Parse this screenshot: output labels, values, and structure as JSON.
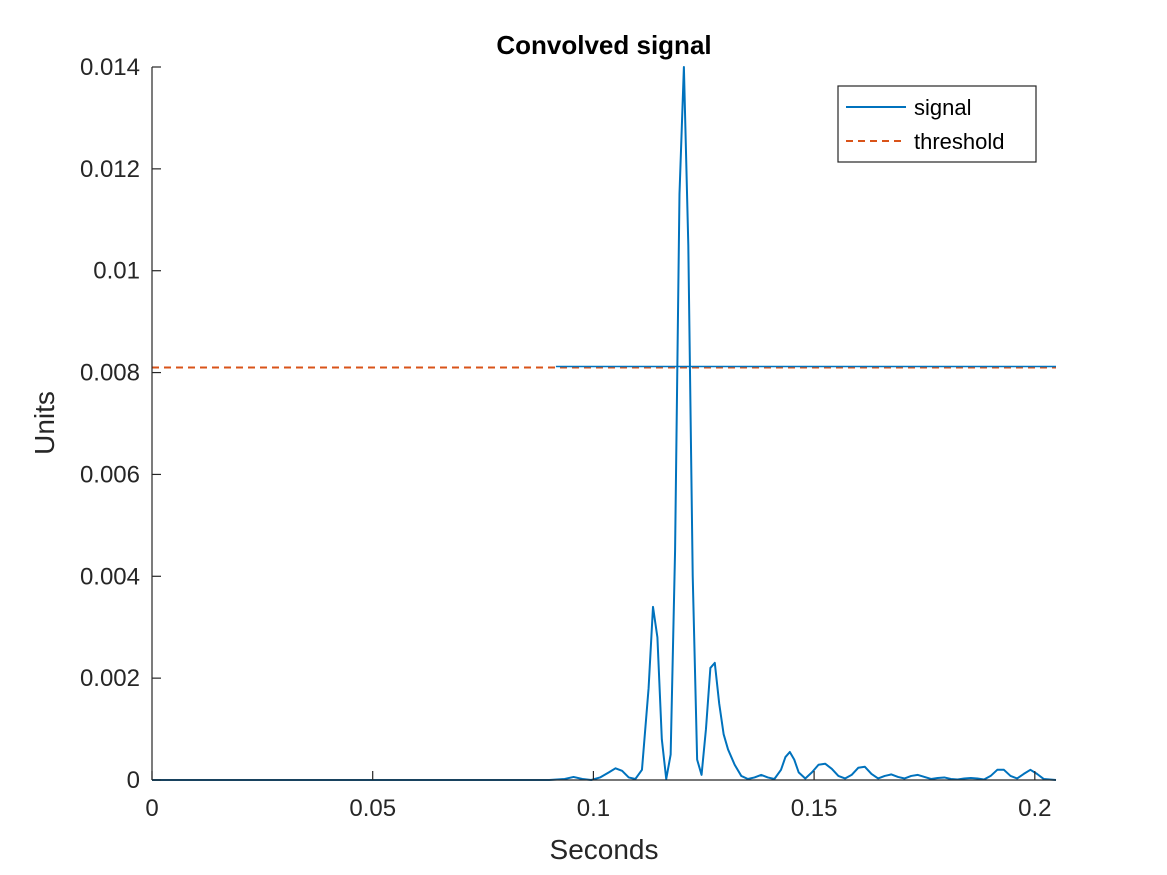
{
  "chart_data": {
    "type": "line",
    "title": "Convolved signal",
    "xlabel": "Seconds",
    "ylabel": "Units",
    "xlim": [
      0,
      0.2048
    ],
    "ylim": [
      0,
      0.014
    ],
    "xticks": [
      0,
      0.05,
      0.1,
      0.15,
      0.2
    ],
    "xtick_labels": [
      "0",
      "0.05",
      "0.1",
      "0.15",
      "0.2"
    ],
    "yticks": [
      0,
      0.002,
      0.004,
      0.006,
      0.008,
      0.01,
      0.012,
      0.014
    ],
    "ytick_labels": [
      "0",
      "0.002",
      "0.004",
      "0.006",
      "0.008",
      "0.01",
      "0.012",
      "0.014"
    ],
    "grid": false,
    "legend": "top-right",
    "series": [
      {
        "name": "signal",
        "color": "#0072BD",
        "style": "solid",
        "x": [
          0,
          0.09,
          0.0935,
          0.0955,
          0.0975,
          0.0995,
          0.1015,
          0.1035,
          0.105,
          0.1065,
          0.108,
          0.1095,
          0.111,
          0.1125,
          0.1135,
          0.1145,
          0.1155,
          0.1165,
          0.1175,
          0.1185,
          0.1195,
          0.1205,
          0.1215,
          0.1225,
          0.1235,
          0.1245,
          0.1255,
          0.1265,
          0.1275,
          0.1285,
          0.1295,
          0.1305,
          0.132,
          0.1335,
          0.135,
          0.1365,
          0.138,
          0.1395,
          0.141,
          0.1425,
          0.1435,
          0.1445,
          0.1455,
          0.1465,
          0.148,
          0.1495,
          0.151,
          0.1525,
          0.154,
          0.1555,
          0.157,
          0.1585,
          0.16,
          0.1615,
          0.163,
          0.1645,
          0.166,
          0.1675,
          0.169,
          0.1705,
          0.172,
          0.1735,
          0.175,
          0.1765,
          0.178,
          0.1795,
          0.181,
          0.1825,
          0.184,
          0.1855,
          0.187,
          0.1885,
          0.19,
          0.1915,
          0.193,
          0.1945,
          0.196,
          0.1975,
          0.199,
          0.2005,
          0.202,
          0.2048
        ],
        "y": [
          0,
          0,
          2e-05,
          6e-05,
          2e-05,
          0,
          5e-05,
          0.00015,
          0.00023,
          0.00018,
          5e-05,
          2e-05,
          0.0002,
          0.0018,
          0.0034,
          0.0028,
          0.0008,
          2e-05,
          0.0005,
          0.0045,
          0.0115,
          0.014,
          0.0105,
          0.004,
          0.0004,
          0.0001,
          0.001,
          0.0022,
          0.0023,
          0.0015,
          0.0009,
          0.0006,
          0.0003,
          8e-05,
          2e-05,
          5e-05,
          0.0001,
          5e-05,
          2e-05,
          0.0002,
          0.00045,
          0.00055,
          0.0004,
          0.00015,
          3e-05,
          0.00015,
          0.0003,
          0.00032,
          0.00022,
          8e-05,
          3e-05,
          0.0001,
          0.00024,
          0.00026,
          0.00012,
          3e-05,
          8e-05,
          0.00011,
          6e-05,
          3e-05,
          8e-05,
          0.0001,
          6e-05,
          2e-05,
          4e-05,
          5e-05,
          2e-05,
          1e-05,
          3e-05,
          4e-05,
          3e-05,
          1e-05,
          8e-05,
          0.0002,
          0.0002,
          8e-05,
          3e-05,
          0.00012,
          0.0002,
          0.00012,
          2e-05,
          0
        ]
      },
      {
        "name": "threshold",
        "color": "#D95319",
        "style": "dashed",
        "x": [
          0,
          0.2048
        ],
        "y": [
          0.0081,
          0.0081
        ]
      }
    ],
    "overlay_segment": {
      "color": "#0072BD",
      "x": [
        0.0915,
        0.2048
      ],
      "y": [
        0.0081,
        0.0081
      ]
    }
  }
}
